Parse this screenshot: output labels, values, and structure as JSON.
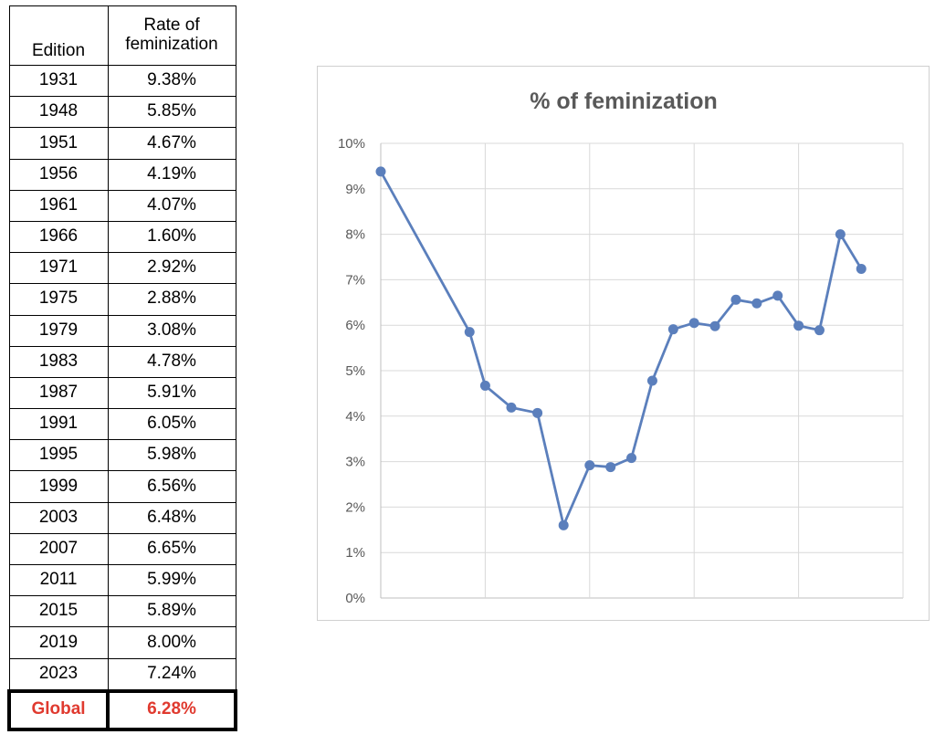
{
  "table": {
    "header_edition": "Edition",
    "header_rate": "Rate of feminization",
    "rows": [
      {
        "edition": "1931",
        "rate": "9.38%"
      },
      {
        "edition": "1948",
        "rate": "5.85%"
      },
      {
        "edition": "1951",
        "rate": "4.67%"
      },
      {
        "edition": "1956",
        "rate": "4.19%"
      },
      {
        "edition": "1961",
        "rate": "4.07%"
      },
      {
        "edition": "1966",
        "rate": "1.60%"
      },
      {
        "edition": "1971",
        "rate": "2.92%"
      },
      {
        "edition": "1975",
        "rate": "2.88%"
      },
      {
        "edition": "1979",
        "rate": "3.08%"
      },
      {
        "edition": "1983",
        "rate": "4.78%"
      },
      {
        "edition": "1987",
        "rate": "5.91%"
      },
      {
        "edition": "1991",
        "rate": "6.05%"
      },
      {
        "edition": "1995",
        "rate": "5.98%"
      },
      {
        "edition": "1999",
        "rate": "6.56%"
      },
      {
        "edition": "2003",
        "rate": "6.48%"
      },
      {
        "edition": "2007",
        "rate": "6.65%"
      },
      {
        "edition": "2011",
        "rate": "5.99%"
      },
      {
        "edition": "2015",
        "rate": "5.89%"
      },
      {
        "edition": "2019",
        "rate": "8.00%"
      },
      {
        "edition": "2023",
        "rate": "7.24%"
      }
    ],
    "global_label": "Global",
    "global_value": "6.28%"
  },
  "colors": {
    "series": "#5b7fbc",
    "global_text": "#e03a2f",
    "title_text": "#595959",
    "grid": "#d9d9d9"
  },
  "chart_data": {
    "type": "line",
    "title": "% of feminization",
    "xlabel": "",
    "ylabel": "",
    "x": [
      1931,
      1948,
      1951,
      1956,
      1961,
      1966,
      1971,
      1975,
      1979,
      1983,
      1987,
      1991,
      1995,
      1999,
      2003,
      2007,
      2011,
      2015,
      2019,
      2023
    ],
    "series": [
      {
        "values": [
          9.38,
          5.85,
          4.67,
          4.19,
          4.07,
          1.6,
          2.92,
          2.88,
          3.08,
          4.78,
          5.91,
          6.05,
          5.98,
          6.56,
          6.48,
          6.65,
          5.99,
          5.89,
          8.0,
          7.24
        ]
      }
    ],
    "ylim": [
      0,
      10
    ],
    "yticks": [
      0,
      1,
      2,
      3,
      4,
      5,
      6,
      7,
      8,
      9,
      10
    ],
    "ytick_labels": [
      "0%",
      "1%",
      "2%",
      "3%",
      "4%",
      "5%",
      "6%",
      "7%",
      "8%",
      "9%",
      "10%"
    ],
    "xlim": [
      1931,
      2031
    ],
    "xgrid": [
      1951,
      1971,
      1991,
      2011,
      2031
    ],
    "grid": true,
    "legend": "none"
  }
}
